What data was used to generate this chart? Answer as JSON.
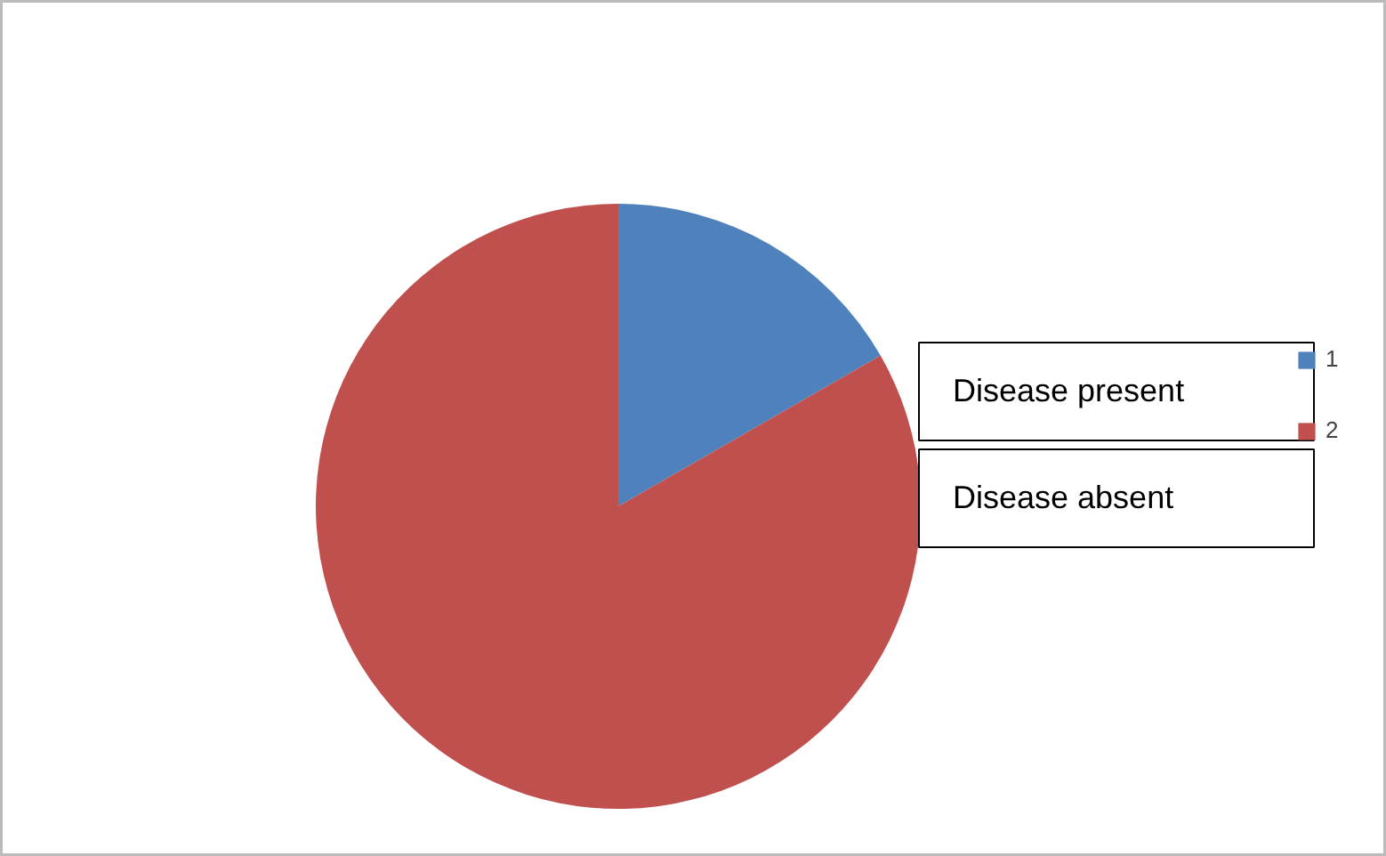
{
  "chart_data": {
    "type": "pie",
    "categories": [
      "1",
      "2"
    ],
    "values": [
      16.7,
      83.3
    ],
    "colors": [
      "#4f81bd",
      "#c0504d"
    ],
    "legend": "right",
    "annotations": [
      "Disease present",
      "Disease absent"
    ]
  }
}
